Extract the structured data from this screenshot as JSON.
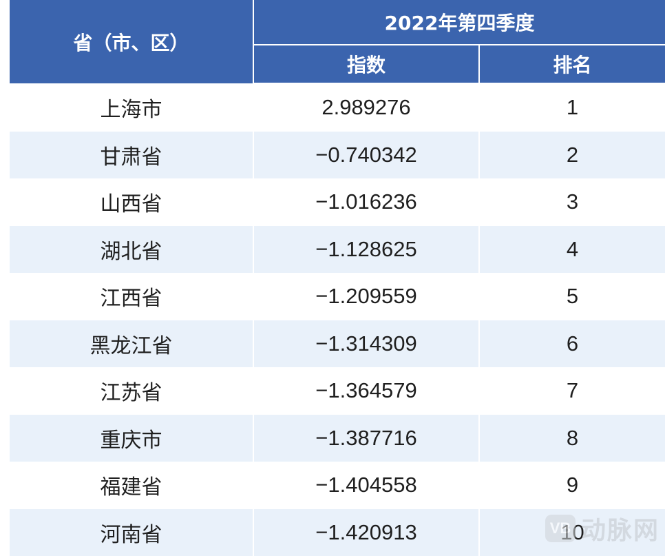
{
  "header": {
    "region_label": "省（市、区）",
    "period_label": "2022年第四季度",
    "index_label": "指数",
    "rank_label": "排名"
  },
  "rows": [
    {
      "region": "上海市",
      "index": "2.989276",
      "rank": "1"
    },
    {
      "region": "甘肃省",
      "index": "−0.740342",
      "rank": "2"
    },
    {
      "region": "山西省",
      "index": "−1.016236",
      "rank": "3"
    },
    {
      "region": "湖北省",
      "index": "−1.128625",
      "rank": "4"
    },
    {
      "region": "江西省",
      "index": "−1.209559",
      "rank": "5"
    },
    {
      "region": "黑龙江省",
      "index": "−1.314309",
      "rank": "6"
    },
    {
      "region": "江苏省",
      "index": "−1.364579",
      "rank": "7"
    },
    {
      "region": "重庆市",
      "index": "−1.387716",
      "rank": "8"
    },
    {
      "region": "福建省",
      "index": "−1.404558",
      "rank": "9"
    },
    {
      "region": "河南省",
      "index": "−1.420913",
      "rank": "10"
    }
  ],
  "watermark": {
    "logo_text": "VB",
    "brand_text": "动脉网"
  },
  "colors": {
    "header_bg": "#3b64ae",
    "row_alt_bg": "#e9f1fa"
  }
}
